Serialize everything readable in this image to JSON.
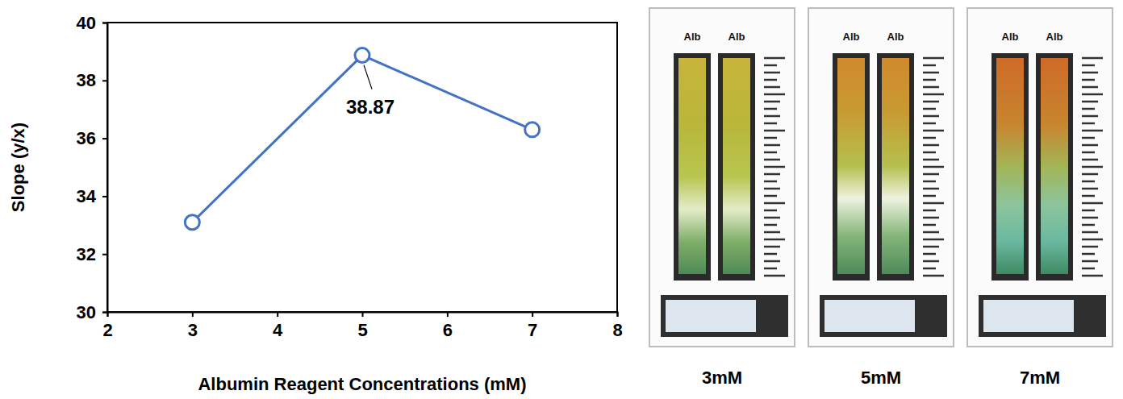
{
  "chart_data": {
    "type": "line",
    "x_label": "Albumin Reagent Concentrations (mM)",
    "y_label": "Slope (y/x)",
    "x": [
      3,
      5,
      7
    ],
    "values": [
      33.1,
      38.87,
      36.3
    ],
    "color": "#4472c4",
    "marker": "circle",
    "xlim": [
      2,
      8
    ],
    "xticks": [
      2,
      3,
      4,
      5,
      6,
      7,
      8
    ],
    "ylim": [
      30,
      40
    ],
    "yticks": [
      30,
      32,
      34,
      36,
      38,
      40
    ],
    "annotations": [
      {
        "text": "38.87",
        "x": 5,
        "y": 38.87
      }
    ]
  },
  "photos": [
    {
      "caption": "3mM",
      "lanes": [
        "Alb",
        "Alb"
      ]
    },
    {
      "caption": "5mM",
      "lanes": [
        "Alb",
        "Alb"
      ]
    },
    {
      "caption": "7mM",
      "lanes": [
        "Alb",
        "Alb"
      ]
    }
  ]
}
